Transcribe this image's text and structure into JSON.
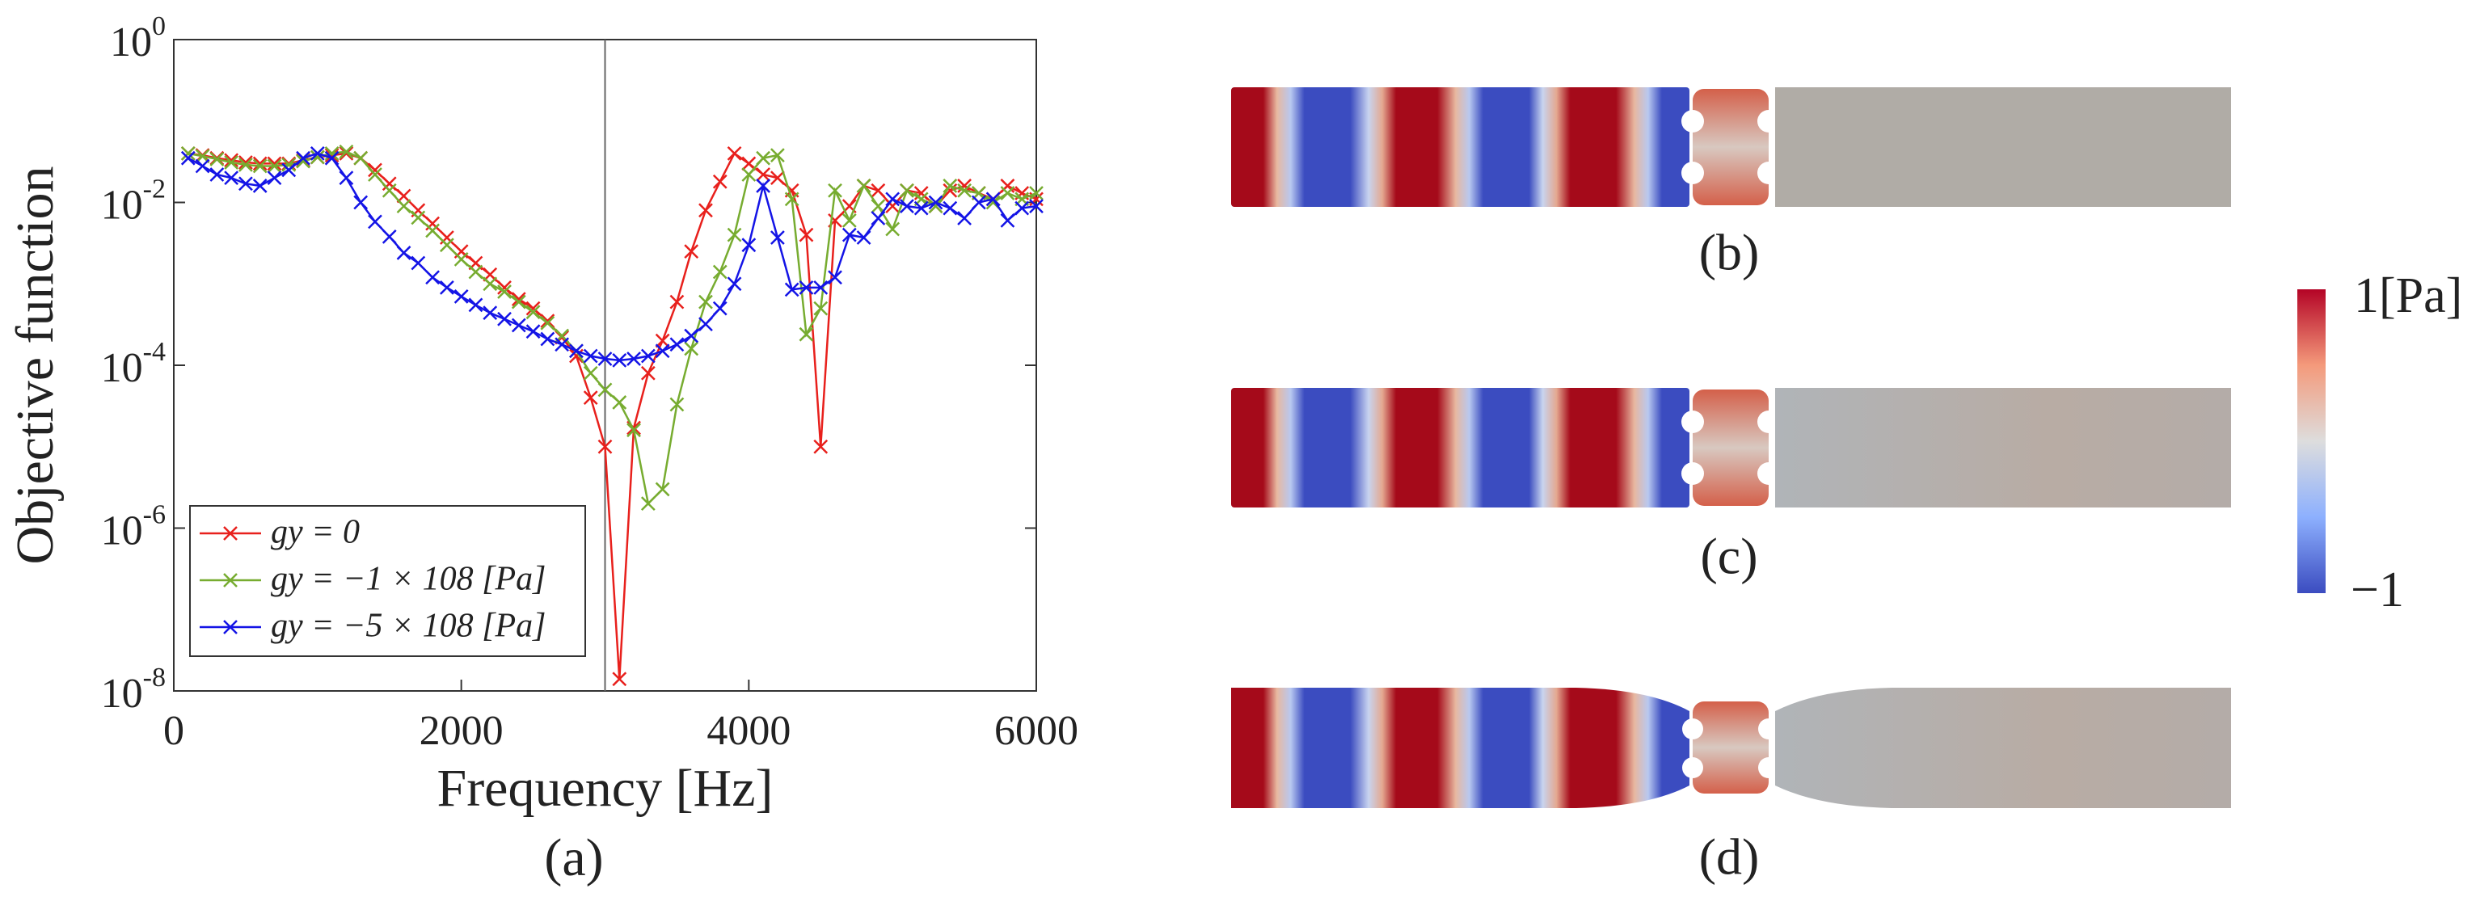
{
  "chart_data": {
    "type": "line",
    "log_y": true,
    "caption": "(a)",
    "xlabel": "Frequency [Hz]",
    "ylabel": "Objective function",
    "xlim": [
      0,
      6000
    ],
    "xticks": [
      0,
      2000,
      4000,
      6000
    ],
    "ylim": [
      1e-08,
      1
    ],
    "yticks": [
      {
        "value": 1e-08,
        "label": "10",
        "exponent": "-8"
      },
      {
        "value": 1e-06,
        "label": "10",
        "exponent": "-6"
      },
      {
        "value": 0.0001,
        "label": "10",
        "exponent": "-4"
      },
      {
        "value": 0.01,
        "label": "10",
        "exponent": "-2"
      },
      {
        "value": 1,
        "label": "10",
        "exponent": "0"
      }
    ],
    "vline": 3000,
    "legend": "lower left",
    "marker": "x",
    "x": [
      100,
      200,
      300,
      400,
      500,
      600,
      700,
      800,
      900,
      1000,
      1100,
      1200,
      1300,
      1400,
      1500,
      1600,
      1700,
      1800,
      1900,
      2000,
      2100,
      2200,
      2300,
      2400,
      2500,
      2600,
      2700,
      2800,
      2900,
      3000,
      3100,
      3200,
      3300,
      3400,
      3500,
      3600,
      3700,
      3800,
      3900,
      4000,
      4100,
      4200,
      4300,
      4400,
      4500,
      4600,
      4700,
      4800,
      4900,
      5000,
      5100,
      5200,
      5300,
      5400,
      5500,
      5600,
      5700,
      5800,
      5900,
      6000
    ],
    "series": [
      {
        "name": "gy = 0",
        "color": "#e8201c",
        "values": [
          0.04,
          0.038,
          0.035,
          0.033,
          0.031,
          0.03,
          0.03,
          0.03,
          0.033,
          0.036,
          0.038,
          0.04,
          0.035,
          0.025,
          0.017,
          0.012,
          0.008,
          0.0055,
          0.0037,
          0.0025,
          0.0018,
          0.0013,
          0.0009,
          0.00065,
          0.0005,
          0.00035,
          0.00022,
          0.00013,
          4e-05,
          1e-05,
          1.4e-08,
          1.7e-05,
          8e-05,
          0.0002,
          0.0006,
          0.0025,
          0.008,
          0.018,
          0.04,
          0.03,
          0.022,
          0.02,
          0.014,
          0.004,
          1e-05,
          0.006,
          0.009,
          0.016,
          0.014,
          0.009,
          0.014,
          0.013,
          0.009,
          0.014,
          0.016,
          0.013,
          0.011,
          0.016,
          0.013,
          0.011
        ]
      },
      {
        "name": "gy = −1 × 108 [Pa]",
        "color": "#77ac30",
        "values": [
          0.04,
          0.037,
          0.034,
          0.031,
          0.029,
          0.028,
          0.028,
          0.029,
          0.032,
          0.036,
          0.04,
          0.042,
          0.035,
          0.022,
          0.014,
          0.009,
          0.0065,
          0.0045,
          0.003,
          0.002,
          0.0014,
          0.001,
          0.0008,
          0.0006,
          0.00045,
          0.00033,
          0.00023,
          0.00015,
          8e-05,
          5e-05,
          3.5e-05,
          1.6e-05,
          2e-06,
          3e-06,
          3.3e-05,
          0.00016,
          0.0006,
          0.0014,
          0.004,
          0.022,
          0.035,
          0.038,
          0.011,
          0.00024,
          0.0005,
          0.014,
          0.006,
          0.016,
          0.009,
          0.0047,
          0.014,
          0.011,
          0.009,
          0.016,
          0.014,
          0.013,
          0.01,
          0.013,
          0.011,
          0.013
        ]
      },
      {
        "name": "gy = −5 × 108 [Pa]",
        "color": "#1414e6",
        "values": [
          0.035,
          0.028,
          0.022,
          0.02,
          0.017,
          0.016,
          0.02,
          0.025,
          0.035,
          0.04,
          0.035,
          0.02,
          0.01,
          0.0058,
          0.0038,
          0.0024,
          0.0018,
          0.0012,
          0.0009,
          0.0007,
          0.00055,
          0.00044,
          0.00037,
          0.00031,
          0.00026,
          0.00021,
          0.00018,
          0.00015,
          0.00013,
          0.00012,
          0.000115,
          0.00012,
          0.00013,
          0.00015,
          0.00018,
          0.00023,
          0.00032,
          0.0005,
          0.001,
          0.003,
          0.016,
          0.0037,
          0.00085,
          0.0009,
          0.0009,
          0.0012,
          0.004,
          0.0037,
          0.0064,
          0.011,
          0.009,
          0.0085,
          0.01,
          0.0085,
          0.0064,
          0.01,
          0.011,
          0.006,
          0.0085,
          0.009
        ]
      }
    ]
  },
  "panels": [
    {
      "caption": "(b)"
    },
    {
      "caption": "(c)"
    },
    {
      "caption": "(d)"
    }
  ],
  "colorbar": {
    "max_label": "1[Pa]",
    "min_label": "−1"
  }
}
